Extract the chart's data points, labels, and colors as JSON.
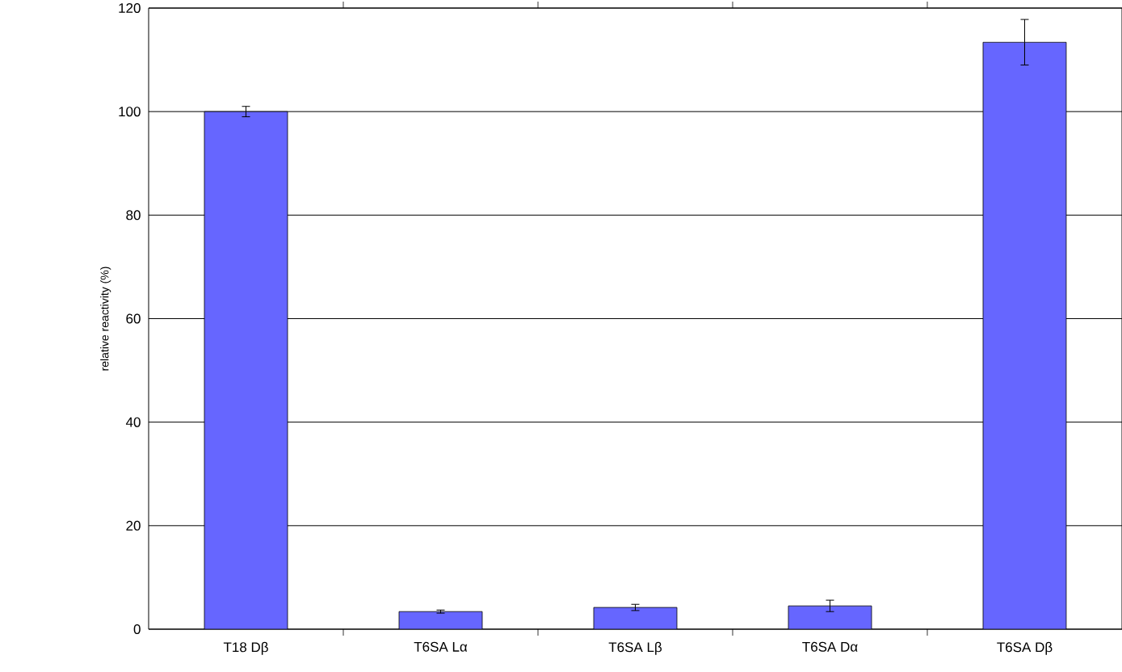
{
  "chart_data": {
    "type": "bar",
    "ylabel": "relative reactivity (%)",
    "categories": [
      "T18 Dβ",
      "T6SA Lα",
      "T6SA Lβ",
      "T6SA Dα",
      "T6SA Dβ"
    ],
    "values": [
      100,
      3.4,
      4.2,
      4.5,
      113.4
    ],
    "errors": [
      1,
      0.3,
      0.6,
      1.1,
      4.4
    ],
    "color": "#6666ff",
    "ylim": [
      0,
      120
    ],
    "yticks": [
      0,
      20,
      40,
      60,
      80,
      100,
      120
    ],
    "grid": "y"
  }
}
